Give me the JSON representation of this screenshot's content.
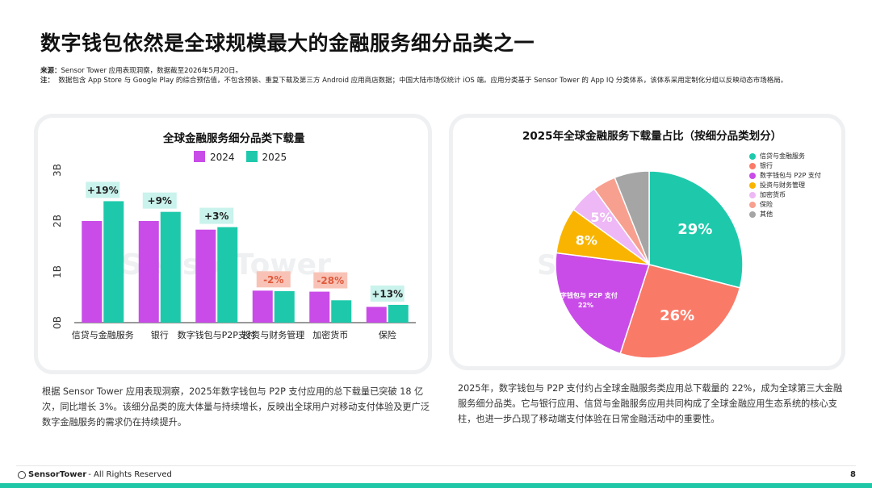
{
  "page": {
    "title": "数字钱包依然是全球规模最大的金融服务细分品类之一",
    "source_label": "来源：",
    "source_text": "Sensor Tower 应用表现洞察，数据截至2026年5月20日。",
    "note_label": "注：",
    "note_text": "数据包含 App Store 与 Google Play 的综合预估值，不包含预装、重复下载及第三方 Android 应用商店数据；中国大陆市场仅统计 iOS 端。应用分类基于 Sensor Tower 的 App IQ 分类体系，该体系采用定制化分组以反映动态市场格局。",
    "left_paragraph": "根据 Sensor Tower 应用表现洞察，2025年数字钱包与 P2P 支付应用的总下载量已突破 18 亿次，同比增长 3%。该细分品类的庞大体量与持续增长，反映出全球用户对移动支付体验及更广泛数字金融服务的需求仍在持续提升。",
    "right_paragraph": "2025年，数字钱包与 P2P 支付约占全球金融服务类应用总下载量的 22%，成为全球第三大金融服务细分品类。它与银行应用、信贷与金融服务应用共同构成了全球金融应用生态系统的核心支柱，也进一步凸现了移动端支付体验在日常金融活动中的重要性。",
    "footer_brand": "SensorTower",
    "footer_rights": "- All Rights Reserved",
    "page_number": "8",
    "watermark": "SensorTower"
  },
  "colors": {
    "series_2024": "#c94ce8",
    "series_2025": "#1ec9ab",
    "growth_pos_bg": "#c9f3ec",
    "growth_neg_bg": "#f8c3b6",
    "growth_neg_text": "#e05a3c"
  },
  "chart_data": [
    {
      "type": "bar",
      "title": "全球金融服务细分品类下载量",
      "categories": [
        "信贷与金融服务",
        "银行",
        "数字钱包与P2P支付",
        "投资与财务管理",
        "加密货币",
        "保险"
      ],
      "series": [
        {
          "name": "2024",
          "values": [
            2.0,
            2.0,
            1.83,
            0.63,
            0.61,
            0.31
          ]
        },
        {
          "name": "2025",
          "values": [
            2.39,
            2.18,
            1.88,
            0.62,
            0.44,
            0.35
          ]
        }
      ],
      "growth_labels": [
        "+19%",
        "+9%",
        "+3%",
        "-2%",
        "-28%",
        "+13%"
      ],
      "yticks": [
        "0B",
        "1B",
        "2B",
        "3B"
      ],
      "ylim": [
        0,
        3
      ],
      "legend": "top",
      "grid": false
    },
    {
      "type": "pie",
      "title": "2025年全球金融服务下载量占比（按细分品类划分）",
      "labels": [
        "信贷与金融服务",
        "银行",
        "数字钱包与 P2P 支付",
        "投资与财务管理",
        "加密货币",
        "保险",
        "其他"
      ],
      "values": [
        29,
        26,
        22,
        8,
        5,
        4,
        6
      ],
      "slice_labels": [
        "29%",
        "26%",
        "22%",
        "8%",
        "5%",
        "",
        ""
      ],
      "callout_label": "数字钱包与 P2P 支付",
      "colors": [
        "#1ec9ab",
        "#fa7a68",
        "#c94ce8",
        "#f8b400",
        "#eeb7f5",
        "#f8a090",
        "#a5a5a5"
      ],
      "legend": "right"
    }
  ]
}
